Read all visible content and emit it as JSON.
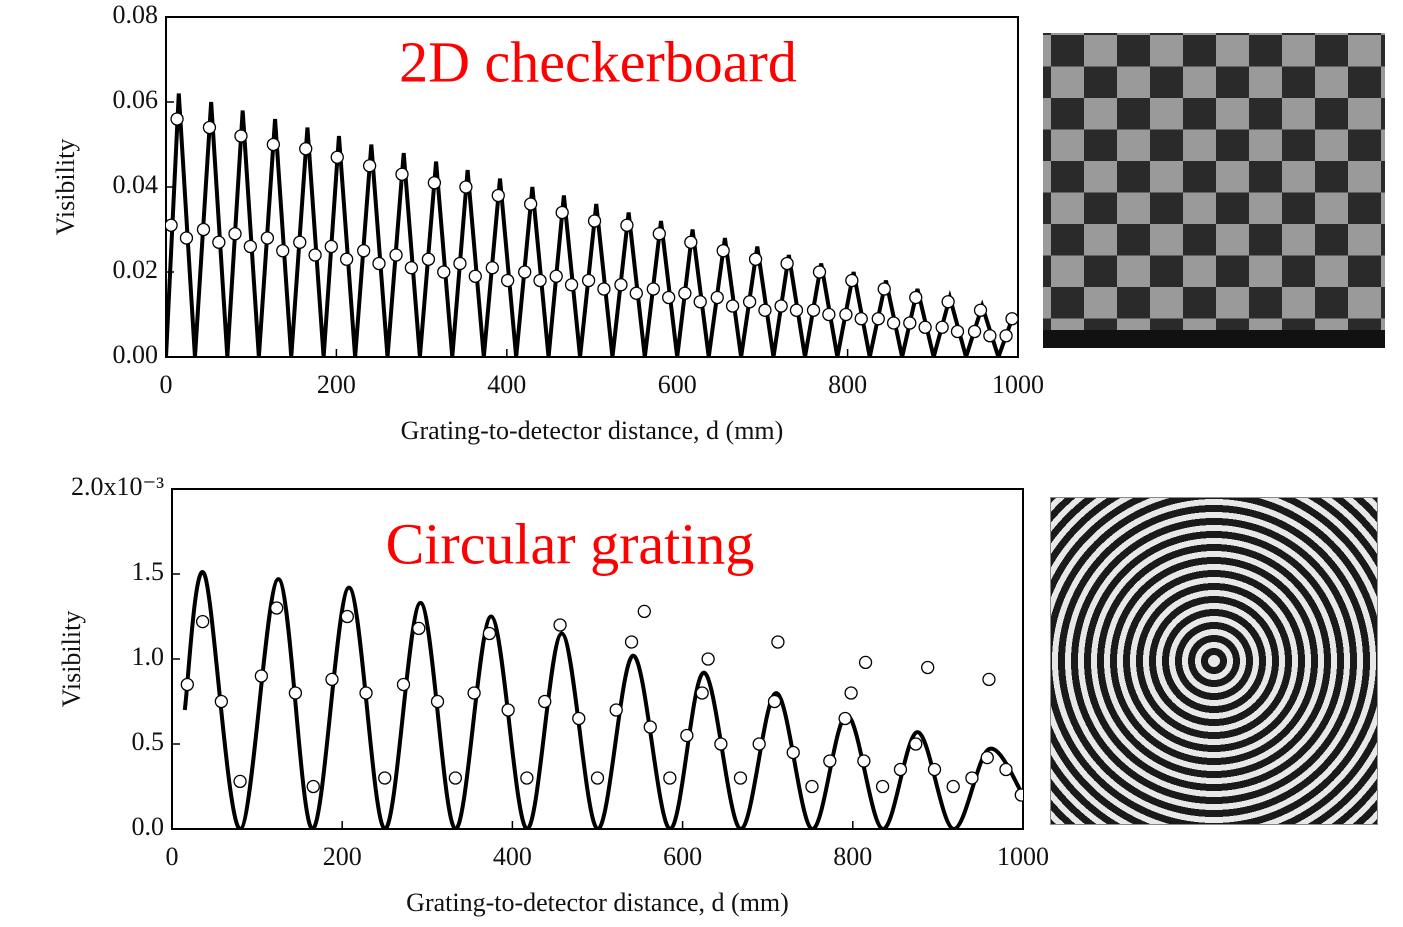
{
  "chart_data": [
    {
      "type": "scatter",
      "title": "2D checkerboard",
      "title_color": "#ff0000",
      "xlabel": "Grating-to-detector distance, d (mm)",
      "ylabel": "Visibility",
      "xlim": [
        0,
        1000
      ],
      "xticks": [
        0,
        200,
        400,
        600,
        800,
        1000
      ],
      "ylim": [
        0,
        0.08
      ],
      "yticks": [
        {
          "value": 0,
          "label": "0.00"
        },
        {
          "value": 0.02,
          "label": "0.02"
        },
        {
          "value": 0.04,
          "label": "0.04"
        },
        {
          "value": 0.06,
          "label": "0.06"
        },
        {
          "value": 0.08,
          "label": "0.08"
        }
      ],
      "series": [
        {
          "style": "line",
          "color": "#000000",
          "curve": "straight",
          "x": [
            0,
            15,
            34,
            53,
            72,
            90,
            109,
            128,
            147,
            166,
            185,
            203,
            222,
            241,
            260,
            279,
            298,
            317,
            336,
            354,
            373,
            392,
            411,
            430,
            449,
            467,
            486,
            505,
            524,
            543,
            562,
            581,
            600,
            618,
            637,
            656,
            675,
            694,
            713,
            731,
            750,
            769,
            788,
            807,
            826,
            845,
            864,
            882,
            901,
            920,
            939,
            958,
            977,
            995
          ],
          "values": [
            0,
            0.062,
            0,
            0.06,
            0,
            0.058,
            0,
            0.056,
            0,
            0.054,
            0,
            0.052,
            0,
            0.05,
            0,
            0.048,
            0,
            0.046,
            0,
            0.044,
            0,
            0.042,
            0,
            0.04,
            0,
            0.038,
            0,
            0.036,
            0,
            0.034,
            0,
            0.032,
            0,
            0.03,
            0,
            0.028,
            0,
            0.026,
            0,
            0.024,
            0,
            0.022,
            0,
            0.02,
            0,
            0.018,
            0,
            0.016,
            0,
            0.014,
            0,
            0.012,
            0,
            0.01
          ]
        },
        {
          "style": "marker",
          "color": "#000000",
          "x": [
            6,
            13,
            24,
            44,
            51,
            62,
            81,
            88,
            99,
            119,
            126,
            137,
            157,
            164,
            175,
            194,
            201,
            212,
            232,
            239,
            250,
            270,
            277,
            288,
            308,
            315,
            326,
            345,
            352,
            363,
            383,
            390,
            401,
            421,
            428,
            439,
            458,
            465,
            476,
            496,
            503,
            514,
            534,
            541,
            552,
            572,
            579,
            590,
            609,
            616,
            627,
            647,
            654,
            665,
            685,
            692,
            703,
            722,
            729,
            740,
            760,
            767,
            778,
            798,
            805,
            816,
            836,
            843,
            854,
            873,
            880,
            891,
            911,
            918,
            929,
            949,
            956,
            967,
            986,
            993
          ],
          "values": [
            0.031,
            0.056,
            0.028,
            0.03,
            0.054,
            0.027,
            0.029,
            0.052,
            0.026,
            0.028,
            0.05,
            0.025,
            0.027,
            0.049,
            0.024,
            0.026,
            0.047,
            0.023,
            0.025,
            0.045,
            0.022,
            0.024,
            0.043,
            0.021,
            0.023,
            0.041,
            0.02,
            0.022,
            0.04,
            0.019,
            0.021,
            0.038,
            0.018,
            0.02,
            0.036,
            0.018,
            0.019,
            0.034,
            0.017,
            0.018,
            0.032,
            0.016,
            0.017,
            0.031,
            0.015,
            0.016,
            0.029,
            0.014,
            0.015,
            0.027,
            0.013,
            0.014,
            0.025,
            0.012,
            0.013,
            0.023,
            0.011,
            0.012,
            0.022,
            0.011,
            0.011,
            0.02,
            0.01,
            0.01,
            0.018,
            0.009,
            0.009,
            0.016,
            0.008,
            0.008,
            0.014,
            0.007,
            0.007,
            0.013,
            0.006,
            0.006,
            0.011,
            0.005,
            0.005,
            0.009
          ]
        }
      ]
    },
    {
      "type": "scatter",
      "title": "Circular grating",
      "title_color": "#ff0000",
      "xlabel": "Grating-to-detector distance, d (mm)",
      "ylabel": "Visibility",
      "xlim": [
        0,
        1000
      ],
      "xticks": [
        0,
        200,
        400,
        600,
        800,
        1000
      ],
      "ylim": [
        0,
        0.002
      ],
      "yticks": [
        {
          "value": 0,
          "label": "0.0"
        },
        {
          "value": 0.0005,
          "label": "0.5"
        },
        {
          "value": 0.001,
          "label": "1.0"
        },
        {
          "value": 0.0015,
          "label": "1.5"
        },
        {
          "value": 0.002,
          "label": "2.0x10⁻³"
        }
      ],
      "series": [
        {
          "style": "line",
          "color": "#000000",
          "curve": "smooth",
          "x": [
            15,
            38,
            80,
            125,
            165,
            208,
            250,
            292,
            333,
            375,
            417,
            458,
            500,
            542,
            585,
            625,
            668,
            710,
            752,
            793,
            835,
            876,
            918,
            960,
            1000
          ],
          "values": [
            0.0007,
            0.0015,
            0,
            0.00147,
            0,
            0.00142,
            0,
            0.00133,
            0,
            0.00125,
            0,
            0.00115,
            0,
            0.00102,
            0,
            0.00092,
            0,
            0.0008,
            0,
            0.00067,
            0,
            0.00057,
            0,
            0.00047,
            0.0002
          ]
        },
        {
          "style": "marker",
          "color": "#000000",
          "x": [
            18,
            36,
            58,
            80,
            105,
            123,
            145,
            166,
            188,
            206,
            228,
            250,
            272,
            290,
            312,
            333,
            355,
            373,
            395,
            417,
            438,
            456,
            478,
            500,
            522,
            540,
            562,
            585,
            605,
            623,
            645,
            668,
            690,
            708,
            730,
            752,
            773,
            791,
            813,
            835,
            856,
            874,
            896,
            918,
            940,
            958,
            980,
            998,
            555,
            630,
            712,
            798,
            815,
            888,
            960
          ],
          "values": [
            0.00085,
            0.00122,
            0.00075,
            0.00028,
            0.0009,
            0.0013,
            0.0008,
            0.00025,
            0.00088,
            0.00125,
            0.0008,
            0.0003,
            0.00085,
            0.00118,
            0.00075,
            0.0003,
            0.0008,
            0.00115,
            0.0007,
            0.0003,
            0.00075,
            0.0012,
            0.00065,
            0.0003,
            0.0007,
            0.0011,
            0.0006,
            0.0003,
            0.00055,
            0.0008,
            0.0005,
            0.0003,
            0.0005,
            0.00075,
            0.00045,
            0.00025,
            0.0004,
            0.00065,
            0.0004,
            0.00025,
            0.00035,
            0.0005,
            0.00035,
            0.00025,
            0.0003,
            0.00042,
            0.00035,
            0.0002,
            0.00128,
            0.001,
            0.0011,
            0.0008,
            0.00098,
            0.00095,
            0.00088
          ]
        }
      ]
    }
  ]
}
